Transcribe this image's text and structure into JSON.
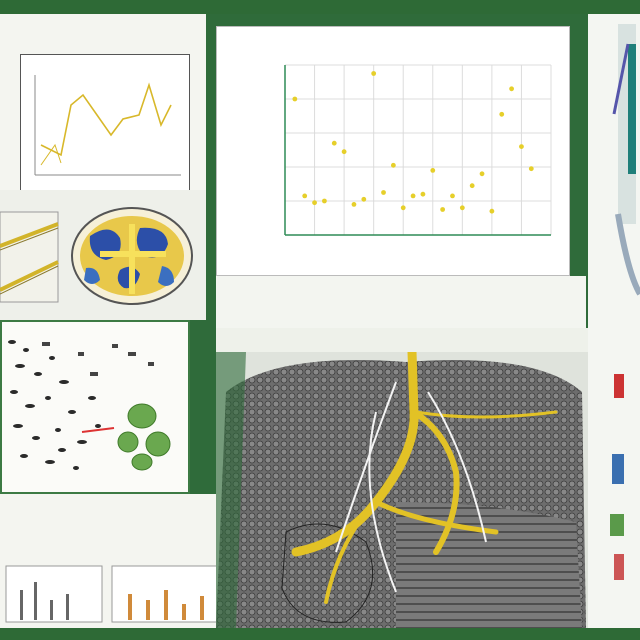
{
  "header": {
    "title": ""
  },
  "panels": {
    "top_left": {
      "caption": "",
      "inset_title": ""
    },
    "main_chart": {
      "caption_lines": [
        "",
        ""
      ]
    },
    "mid_caption": {
      "text": ""
    },
    "bottom_left": {
      "caption_lines": [
        "",
        ""
      ]
    }
  },
  "chart_data": {
    "type": "scatter",
    "title": "",
    "xlabel": "",
    "ylabel": "",
    "x": [
      1,
      2,
      3,
      4,
      5,
      6,
      7,
      8,
      9,
      10,
      11,
      12,
      13,
      14,
      15,
      16,
      17,
      18,
      19,
      20,
      21,
      22,
      23,
      24,
      25
    ],
    "y": [
      8.0,
      2.3,
      1.9,
      2.0,
      5.4,
      4.9,
      1.8,
      2.1,
      9.5,
      2.5,
      4.1,
      1.6,
      2.3,
      2.4,
      3.8,
      1.5,
      2.3,
      1.6,
      2.9,
      3.6,
      1.4,
      7.1,
      8.6,
      5.2,
      3.9
    ],
    "xlim": [
      0,
      27
    ],
    "ylim": [
      0,
      10
    ],
    "grid": true,
    "color": "#e6cf2a"
  },
  "colors": {
    "brand_green": "#2e6a36",
    "accent_yellow": "#e6cf2a",
    "paper": "#f7f7f2",
    "tissue_gray": "#6d6d6d",
    "green_organ": "#6aa84f",
    "blue_region": "#2c4fa8"
  }
}
